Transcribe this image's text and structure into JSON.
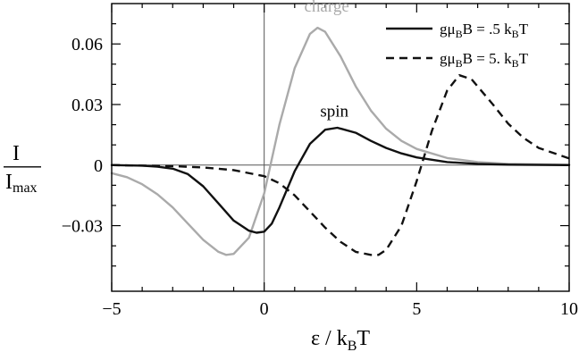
{
  "chart_data": {
    "type": "line",
    "title": "",
    "xlabel": "ε / k_BT",
    "ylabel": "I / I_max",
    "xlim": [
      -5,
      10
    ],
    "ylim": [
      -0.0625,
      0.08
    ],
    "x_ticks": [
      -5,
      0,
      5,
      10
    ],
    "x_tick_labels": [
      "−5",
      "0",
      "5",
      "10"
    ],
    "y_ticks": [
      -0.03,
      0,
      0.03,
      0.06
    ],
    "y_tick_labels": [
      "−0.03",
      "0",
      "0.03",
      "0.06"
    ],
    "grid": false,
    "zero_lines": true,
    "legend_position": "top-right",
    "legend": [
      {
        "label": "gμBB = .5 kBT",
        "series": "spin"
      },
      {
        "label": "gμBB = 5. kBT",
        "series": "dashed"
      }
    ],
    "annotations": [
      {
        "text": "charge",
        "series": "charge"
      },
      {
        "text": "spin",
        "series": "spin"
      }
    ],
    "series": [
      {
        "name": "charge",
        "color": "#aaaaaa",
        "style": "solid",
        "x": [
          -5,
          -4.5,
          -4,
          -3.5,
          -3,
          -2.5,
          -2,
          -1.5,
          -1.25,
          -1,
          -0.5,
          0,
          0.5,
          1,
          1.5,
          1.75,
          2,
          2.5,
          3,
          3.5,
          4,
          4.5,
          5,
          6,
          7,
          8,
          10
        ],
        "y": [
          -0.004,
          -0.006,
          -0.0095,
          -0.0145,
          -0.021,
          -0.029,
          -0.037,
          -0.043,
          -0.0445,
          -0.044,
          -0.036,
          -0.014,
          0.02,
          0.048,
          0.065,
          0.068,
          0.066,
          0.054,
          0.039,
          0.027,
          0.018,
          0.012,
          0.008,
          0.0035,
          0.0015,
          0.0006,
          0.0001
        ]
      },
      {
        "name": "spin",
        "color": "#111111",
        "style": "solid",
        "x": [
          -5,
          -4,
          -3.5,
          -3,
          -2.5,
          -2,
          -1.5,
          -1,
          -0.5,
          -0.25,
          0,
          0.25,
          0.5,
          1,
          1.5,
          2,
          2.4,
          3,
          3.5,
          4,
          4.5,
          5,
          6,
          7,
          8,
          10
        ],
        "y": [
          0,
          -0.0003,
          -0.0008,
          -0.0018,
          -0.0045,
          -0.0105,
          -0.019,
          -0.0275,
          -0.0325,
          -0.0335,
          -0.033,
          -0.029,
          -0.021,
          -0.003,
          0.0105,
          0.0175,
          0.0185,
          0.016,
          0.012,
          0.0085,
          0.0058,
          0.0038,
          0.0015,
          0.0006,
          0.0002,
          0
        ]
      },
      {
        "name": "dashed",
        "color": "#111111",
        "style": "dashed",
        "x": [
          -5,
          -3,
          -2,
          -1,
          0,
          0.5,
          1,
          1.5,
          2,
          2.5,
          3,
          3.5,
          3.75,
          4,
          4.5,
          5,
          5.5,
          6,
          6.4,
          6.8,
          7.5,
          8,
          8.5,
          9,
          10
        ],
        "y": [
          0,
          -0.0005,
          -0.0012,
          -0.0025,
          -0.0055,
          -0.009,
          -0.015,
          -0.023,
          -0.031,
          -0.038,
          -0.043,
          -0.0445,
          -0.0445,
          -0.042,
          -0.03,
          -0.008,
          0.017,
          0.037,
          0.0445,
          0.0425,
          0.03,
          0.0205,
          0.0135,
          0.0085,
          0.0033
        ]
      }
    ]
  }
}
